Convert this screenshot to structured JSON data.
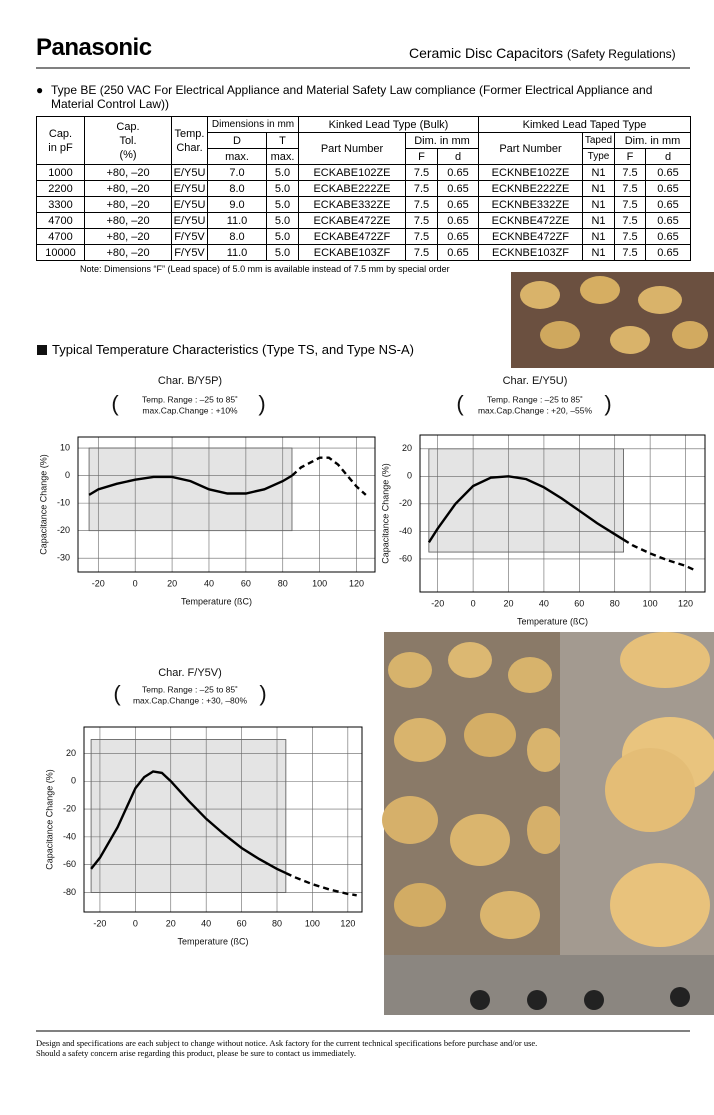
{
  "header": {
    "brand": "Panasonic",
    "title": "Ceramic Disc Capacitors",
    "subtitle": "(Safety Regulations)"
  },
  "intro": "Type BE (250 VAC For Electrical Appliance and Material Safety Law compliance (Former Electrical Appliance and Material Control Law))",
  "table": {
    "head": {
      "cap": [
        "Cap.",
        "in pF"
      ],
      "tol": [
        "Cap.",
        "Tol.",
        "(%)"
      ],
      "temp": [
        "Temp.",
        "Char."
      ],
      "dims": "Dimensions in mm",
      "d": "D",
      "t": "T",
      "max_d": "max.",
      "max_t": "max.",
      "bulk": "Kinked Lead Type (Bulk)",
      "part1": "Part Number",
      "dim1": "Dim. in mm",
      "f1": "F",
      "d1": "d",
      "taped_type": "Kimked Lead Taped Type",
      "part2": "Part Number",
      "taped": "Taped",
      "type": "Type",
      "dim2": "Dim. in mm",
      "f2": "F",
      "d2": "d"
    },
    "rows": [
      [
        "1000",
        "+80, –20",
        "E/Y5U",
        "7.0",
        "5.0",
        "ECKABE102ZE",
        "7.5",
        "0.65",
        "ECKNBE102ZE",
        "N1",
        "7.5",
        "0.65"
      ],
      [
        "2200",
        "+80, –20",
        "E/Y5U",
        "8.0",
        "5.0",
        "ECKABE222ZE",
        "7.5",
        "0.65",
        "ECKNBE222ZE",
        "N1",
        "7.5",
        "0.65"
      ],
      [
        "3300",
        "+80, –20",
        "E/Y5U",
        "9.0",
        "5.0",
        "ECKABE332ZE",
        "7.5",
        "0.65",
        "ECKNBE332ZE",
        "N1",
        "7.5",
        "0.65"
      ],
      [
        "4700",
        "+80, –20",
        "E/Y5U",
        "11.0",
        "5.0",
        "ECKABE472ZE",
        "7.5",
        "0.65",
        "ECKNBE472ZE",
        "N1",
        "7.5",
        "0.65"
      ],
      [
        "4700",
        "+80, –20",
        "F/Y5V",
        "8.0",
        "5.0",
        "ECKABE472ZF",
        "7.5",
        "0.65",
        "ECKNBE472ZF",
        "N1",
        "7.5",
        "0.65"
      ],
      [
        "10000",
        "+80, –20",
        "F/Y5V",
        "11.0",
        "5.0",
        "ECKABE103ZF",
        "7.5",
        "0.65",
        "ECKNBE103ZF",
        "N1",
        "7.5",
        "0.65"
      ]
    ]
  },
  "note": "Note:  Dimensions “F” (Lead space) of 5.0 mm is available instead of 7.5 mm by special order",
  "section_title": "Typical Temperature Characteristics (Type TS, and Type NS-A)",
  "chart_data": [
    {
      "type": "line",
      "title": "Char. B/Y5P)",
      "annotation": [
        "Temp. Range : –25 to 85˚",
        "max.Cap.Change : +10%"
      ],
      "x_label": "Temperature (ßC)",
      "y_label": "Capacitance Change (%)",
      "xlim": [
        -31,
        130
      ],
      "ylim": [
        -35,
        14
      ],
      "xticks": [
        -20,
        0,
        20,
        40,
        60,
        80,
        100,
        120
      ],
      "yticks": [
        10,
        0,
        -10,
        -20,
        -30
      ],
      "grid": true,
      "shade": {
        "x": [
          -25,
          85
        ],
        "y": [
          -20,
          10
        ],
        "color": "#e4e4e4"
      },
      "x": [
        -25,
        -20,
        -10,
        0,
        10,
        20,
        30,
        40,
        50,
        60,
        70,
        80,
        85,
        90,
        100,
        105,
        110,
        115,
        120,
        125
      ],
      "series": [
        {
          "style": "solid",
          "color": "#000000",
          "values": [
            -7,
            -5,
            -3,
            -1.5,
            -0.5,
            -0.5,
            -2,
            -5,
            -6.5,
            -6.5,
            -5,
            -2,
            0,
            null,
            null,
            null,
            null,
            null,
            null,
            null
          ]
        },
        {
          "style": "dashed",
          "color": "#000000",
          "values": [
            null,
            null,
            null,
            null,
            null,
            null,
            null,
            null,
            null,
            null,
            null,
            null,
            0,
            3,
            6.5,
            6.5,
            4,
            0,
            -4,
            -7
          ]
        }
      ]
    },
    {
      "type": "line",
      "title": "Char. E/Y5U)",
      "annotation": [
        "Temp. Range : –25 to 85˚",
        "max.Cap.Change : +20, –55%"
      ],
      "x_label": "Temperature (ßC)",
      "y_label": "Capacitance Change (%)",
      "xlim": [
        -30,
        131
      ],
      "ylim": [
        -84,
        30
      ],
      "xticks": [
        -20,
        0,
        20,
        40,
        60,
        80,
        100,
        120
      ],
      "yticks": [
        20,
        0,
        -20,
        -40,
        -60
      ],
      "grid": true,
      "shade": {
        "x": [
          -25,
          85
        ],
        "y": [
          -55,
          20
        ],
        "color": "#e4e4e4"
      },
      "x": [
        -25,
        -20,
        -10,
        0,
        10,
        20,
        30,
        40,
        50,
        60,
        70,
        80,
        85,
        90,
        100,
        110,
        120,
        125
      ],
      "series": [
        {
          "style": "solid",
          "color": "#000000",
          "values": [
            -48,
            -38,
            -20,
            -7,
            -1,
            0,
            -2,
            -8,
            -16,
            -25,
            -34,
            -42,
            -46,
            null,
            null,
            null,
            null,
            null
          ]
        },
        {
          "style": "dashed",
          "color": "#000000",
          "values": [
            null,
            null,
            null,
            null,
            null,
            null,
            null,
            null,
            null,
            null,
            null,
            null,
            -46,
            -50,
            -56,
            -61,
            -65,
            -68
          ]
        }
      ]
    },
    {
      "type": "line",
      "title": "Char. F/Y5V)",
      "annotation": [
        "Temp. Range : –25 to 85˚",
        "max.Cap.Change : +30, –80%"
      ],
      "x_label": "Temperature (ßC)",
      "y_label": "Capacitance Change (%)",
      "xlim": [
        -29,
        128
      ],
      "ylim": [
        -94,
        39
      ],
      "xticks": [
        -20,
        0,
        20,
        40,
        60,
        80,
        100,
        120
      ],
      "yticks": [
        20,
        0,
        -20,
        -40,
        -60,
        -80
      ],
      "grid": true,
      "shade": {
        "x": [
          -25,
          85
        ],
        "y": [
          -80,
          30
        ],
        "color": "#e4e4e4"
      },
      "x": [
        -25,
        -20,
        -10,
        0,
        5,
        10,
        15,
        20,
        30,
        40,
        50,
        60,
        70,
        80,
        85,
        90,
        100,
        110,
        120,
        125
      ],
      "series": [
        {
          "style": "solid",
          "color": "#000000",
          "values": [
            -63,
            -55,
            -33,
            -5,
            3,
            7,
            6,
            0,
            -14,
            -27,
            -38,
            -48,
            -56,
            -63,
            -66,
            null,
            null,
            null,
            null,
            null
          ]
        },
        {
          "style": "dashed",
          "color": "#000000",
          "values": [
            null,
            null,
            null,
            null,
            null,
            null,
            null,
            null,
            null,
            null,
            null,
            null,
            null,
            null,
            -66,
            -69,
            -74,
            -78,
            -81,
            -82
          ]
        }
      ]
    }
  ],
  "footer": [
    "Design and specifications are each subject to change without notice.  Ask factory for the current technical specifications before purchase and/or use.",
    "Should a safety concern arise regarding this product, please be sure to contact us immediately."
  ]
}
